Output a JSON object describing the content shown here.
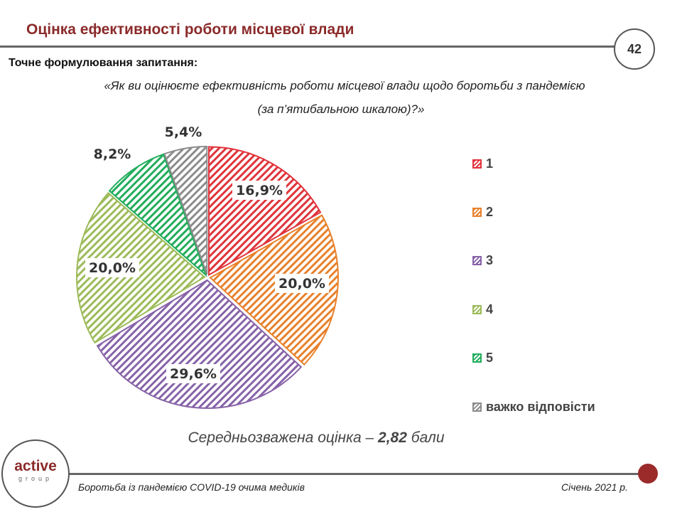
{
  "header": {
    "title": "Оцінка ефективності роботи місцевої влади",
    "page_number": "42"
  },
  "question": {
    "label": "Точне формулювання запитання:",
    "line1": "«Як ви оцінюєте ефективність роботи місцевої влади щодо боротьби з пандемією",
    "line2": "(за п’ятибальною шкалою)?»"
  },
  "chart_data": {
    "type": "pie",
    "categories": [
      "1",
      "2",
      "3",
      "4",
      "5",
      "важко відповісти"
    ],
    "values": [
      16.9,
      20.0,
      29.6,
      20.0,
      8.2,
      5.4
    ],
    "labels": [
      "16,9%",
      "20,0%",
      "29,6%",
      "20,0%",
      "8,2%",
      "5,4%"
    ],
    "colors": [
      "#e0343c",
      "#e8812c",
      "#8763a8",
      "#9dbb5a",
      "#22ad5c",
      "#8c8c8c"
    ],
    "fill": "diagonal-hatch",
    "start": "12 o'clock, clockwise",
    "legend": "right"
  },
  "mean": {
    "text": "Середньозважена оцінка – ",
    "value": "2,82",
    "unit": " бали"
  },
  "footer": {
    "logo_main": "active",
    "logo_sub": "group",
    "text": "Боротьба із пандемією COVID-19 очима медиків",
    "date": "Січень 2021 р."
  }
}
